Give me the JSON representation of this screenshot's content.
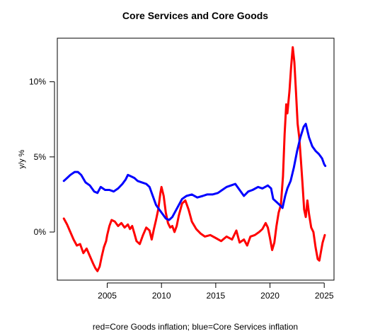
{
  "chart_data": {
    "type": "line",
    "title": "Core Services and Core Goods",
    "xlabel": "",
    "ylabel": "y/y %",
    "caption": "red=Core Goods inflation; blue=Core Services inflation",
    "xlim": [
      2000.4,
      2025.9
    ],
    "ylim": [
      -3.2,
      12.9
    ],
    "x_ticks": [
      {
        "value": 2005,
        "label": "2005"
      },
      {
        "value": 2010,
        "label": "2010"
      },
      {
        "value": 2015,
        "label": "2015"
      },
      {
        "value": 2020,
        "label": "2020"
      },
      {
        "value": 2025,
        "label": "2025"
      }
    ],
    "y_ticks": [
      {
        "value": 0,
        "label": "0%"
      },
      {
        "value": 5,
        "label": "5%"
      },
      {
        "value": 10,
        "label": "10%"
      }
    ],
    "grid": false,
    "series": [
      {
        "name": "Core Goods inflation",
        "color": "#ff0000",
        "points": [
          [
            2001.0,
            0.9
          ],
          [
            2001.3,
            0.5
          ],
          [
            2001.6,
            0.0
          ],
          [
            2001.9,
            -0.5
          ],
          [
            2002.2,
            -0.9
          ],
          [
            2002.5,
            -0.8
          ],
          [
            2002.8,
            -1.4
          ],
          [
            2003.1,
            -1.1
          ],
          [
            2003.4,
            -1.6
          ],
          [
            2003.7,
            -2.1
          ],
          [
            2003.9,
            -2.4
          ],
          [
            2004.1,
            -2.6
          ],
          [
            2004.3,
            -2.3
          ],
          [
            2004.5,
            -1.6
          ],
          [
            2004.7,
            -1.0
          ],
          [
            2004.9,
            -0.6
          ],
          [
            2005.0,
            -0.2
          ],
          [
            2005.2,
            0.4
          ],
          [
            2005.4,
            0.8
          ],
          [
            2005.7,
            0.7
          ],
          [
            2006.0,
            0.4
          ],
          [
            2006.3,
            0.6
          ],
          [
            2006.6,
            0.3
          ],
          [
            2006.9,
            0.5
          ],
          [
            2007.1,
            0.2
          ],
          [
            2007.3,
            0.4
          ],
          [
            2007.5,
            -0.1
          ],
          [
            2007.7,
            -0.6
          ],
          [
            2008.0,
            -0.8
          ],
          [
            2008.3,
            -0.2
          ],
          [
            2008.6,
            0.3
          ],
          [
            2008.9,
            0.1
          ],
          [
            2009.1,
            -0.5
          ],
          [
            2009.3,
            0.2
          ],
          [
            2009.5,
            0.8
          ],
          [
            2009.7,
            1.5
          ],
          [
            2009.9,
            2.6
          ],
          [
            2010.0,
            3.0
          ],
          [
            2010.2,
            2.4
          ],
          [
            2010.4,
            1.3
          ],
          [
            2010.6,
            0.6
          ],
          [
            2010.8,
            0.3
          ],
          [
            2011.0,
            0.4
          ],
          [
            2011.2,
            0.0
          ],
          [
            2011.4,
            0.4
          ],
          [
            2011.6,
            1.1
          ],
          [
            2011.9,
            1.9
          ],
          [
            2012.2,
            2.1
          ],
          [
            2012.5,
            1.5
          ],
          [
            2012.8,
            0.7
          ],
          [
            2013.2,
            0.2
          ],
          [
            2013.6,
            -0.1
          ],
          [
            2014.0,
            -0.3
          ],
          [
            2014.5,
            -0.2
          ],
          [
            2015.0,
            -0.4
          ],
          [
            2015.5,
            -0.6
          ],
          [
            2016.0,
            -0.3
          ],
          [
            2016.5,
            -0.5
          ],
          [
            2016.9,
            0.1
          ],
          [
            2017.2,
            -0.7
          ],
          [
            2017.6,
            -0.5
          ],
          [
            2017.9,
            -0.9
          ],
          [
            2018.2,
            -0.3
          ],
          [
            2018.6,
            -0.2
          ],
          [
            2019.0,
            0.0
          ],
          [
            2019.3,
            0.2
          ],
          [
            2019.6,
            0.6
          ],
          [
            2019.8,
            0.3
          ],
          [
            2020.0,
            -0.4
          ],
          [
            2020.2,
            -1.2
          ],
          [
            2020.4,
            -0.7
          ],
          [
            2020.6,
            0.4
          ],
          [
            2020.8,
            1.3
          ],
          [
            2021.0,
            1.8
          ],
          [
            2021.2,
            3.7
          ],
          [
            2021.35,
            6.5
          ],
          [
            2021.5,
            8.5
          ],
          [
            2021.6,
            7.9
          ],
          [
            2021.8,
            9.4
          ],
          [
            2021.95,
            11.0
          ],
          [
            2022.1,
            12.3
          ],
          [
            2022.25,
            11.3
          ],
          [
            2022.4,
            9.3
          ],
          [
            2022.55,
            7.2
          ],
          [
            2022.7,
            6.3
          ],
          [
            2022.85,
            4.8
          ],
          [
            2023.0,
            3.2
          ],
          [
            2023.15,
            1.5
          ],
          [
            2023.3,
            1.0
          ],
          [
            2023.45,
            2.1
          ],
          [
            2023.6,
            1.2
          ],
          [
            2023.8,
            0.3
          ],
          [
            2024.0,
            0.0
          ],
          [
            2024.2,
            -1.0
          ],
          [
            2024.4,
            -1.8
          ],
          [
            2024.55,
            -1.9
          ],
          [
            2024.7,
            -1.3
          ],
          [
            2024.85,
            -0.7
          ],
          [
            2025.05,
            -0.2
          ]
        ]
      },
      {
        "name": "Core Services inflation",
        "color": "#0000ff",
        "points": [
          [
            2001.0,
            3.4
          ],
          [
            2001.3,
            3.6
          ],
          [
            2001.6,
            3.8
          ],
          [
            2002.0,
            4.0
          ],
          [
            2002.3,
            4.0
          ],
          [
            2002.6,
            3.8
          ],
          [
            2003.0,
            3.3
          ],
          [
            2003.4,
            3.1
          ],
          [
            2003.8,
            2.7
          ],
          [
            2004.1,
            2.6
          ],
          [
            2004.4,
            3.0
          ],
          [
            2004.8,
            2.8
          ],
          [
            2005.2,
            2.8
          ],
          [
            2005.6,
            2.7
          ],
          [
            2006.0,
            2.9
          ],
          [
            2006.4,
            3.2
          ],
          [
            2006.7,
            3.5
          ],
          [
            2006.9,
            3.8
          ],
          [
            2007.2,
            3.7
          ],
          [
            2007.5,
            3.6
          ],
          [
            2007.8,
            3.4
          ],
          [
            2008.2,
            3.3
          ],
          [
            2008.6,
            3.2
          ],
          [
            2008.9,
            3.0
          ],
          [
            2009.2,
            2.4
          ],
          [
            2009.5,
            1.8
          ],
          [
            2009.8,
            1.5
          ],
          [
            2010.1,
            1.2
          ],
          [
            2010.4,
            0.9
          ],
          [
            2010.7,
            0.8
          ],
          [
            2011.0,
            1.0
          ],
          [
            2011.3,
            1.4
          ],
          [
            2011.6,
            1.8
          ],
          [
            2011.9,
            2.2
          ],
          [
            2012.3,
            2.4
          ],
          [
            2012.8,
            2.5
          ],
          [
            2013.3,
            2.3
          ],
          [
            2013.8,
            2.4
          ],
          [
            2014.2,
            2.5
          ],
          [
            2014.7,
            2.5
          ],
          [
            2015.2,
            2.6
          ],
          [
            2015.6,
            2.8
          ],
          [
            2016.0,
            3.0
          ],
          [
            2016.4,
            3.1
          ],
          [
            2016.8,
            3.2
          ],
          [
            2017.2,
            2.8
          ],
          [
            2017.6,
            2.4
          ],
          [
            2018.0,
            2.7
          ],
          [
            2018.4,
            2.8
          ],
          [
            2018.9,
            3.0
          ],
          [
            2019.3,
            2.9
          ],
          [
            2019.8,
            3.1
          ],
          [
            2020.1,
            2.9
          ],
          [
            2020.3,
            2.2
          ],
          [
            2020.6,
            2.0
          ],
          [
            2020.9,
            1.8
          ],
          [
            2021.15,
            1.6
          ],
          [
            2021.4,
            2.4
          ],
          [
            2021.6,
            2.9
          ],
          [
            2021.9,
            3.4
          ],
          [
            2022.2,
            4.3
          ],
          [
            2022.5,
            5.4
          ],
          [
            2022.8,
            6.3
          ],
          [
            2023.1,
            7.0
          ],
          [
            2023.3,
            7.2
          ],
          [
            2023.6,
            6.3
          ],
          [
            2023.9,
            5.7
          ],
          [
            2024.2,
            5.4
          ],
          [
            2024.5,
            5.2
          ],
          [
            2024.8,
            4.9
          ],
          [
            2025.0,
            4.5
          ],
          [
            2025.1,
            4.4
          ]
        ]
      }
    ]
  }
}
